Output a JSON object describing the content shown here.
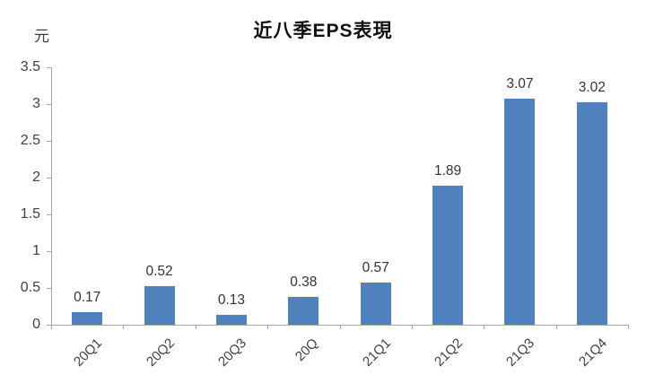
{
  "chart_data": {
    "type": "bar",
    "title": "近八季EPS表現",
    "unit_label": "元",
    "categories": [
      "20Q1",
      "20Q2",
      "20Q3",
      "20Q",
      "21Q1",
      "21Q2",
      "21Q3",
      "21Q4"
    ],
    "values": [
      0.17,
      0.52,
      0.13,
      0.38,
      0.57,
      1.89,
      3.07,
      3.02
    ],
    "data_labels": [
      "0.17",
      "0.52",
      "0.13",
      "0.38",
      "0.57",
      "1.89",
      "3.07",
      "3.02"
    ],
    "y_ticks": [
      0,
      0.5,
      1,
      1.5,
      2,
      2.5,
      3,
      3.5
    ],
    "y_tick_labels": [
      "0",
      "0.5",
      "1",
      "1.5",
      "2",
      "2.5",
      "3",
      "3.5"
    ],
    "ylim": [
      0,
      3.5
    ],
    "xlabel": "",
    "ylabel": "元",
    "grid": false,
    "legend": false,
    "bar_color": "#4f81bd",
    "axis_color": "#a6a6a6"
  }
}
